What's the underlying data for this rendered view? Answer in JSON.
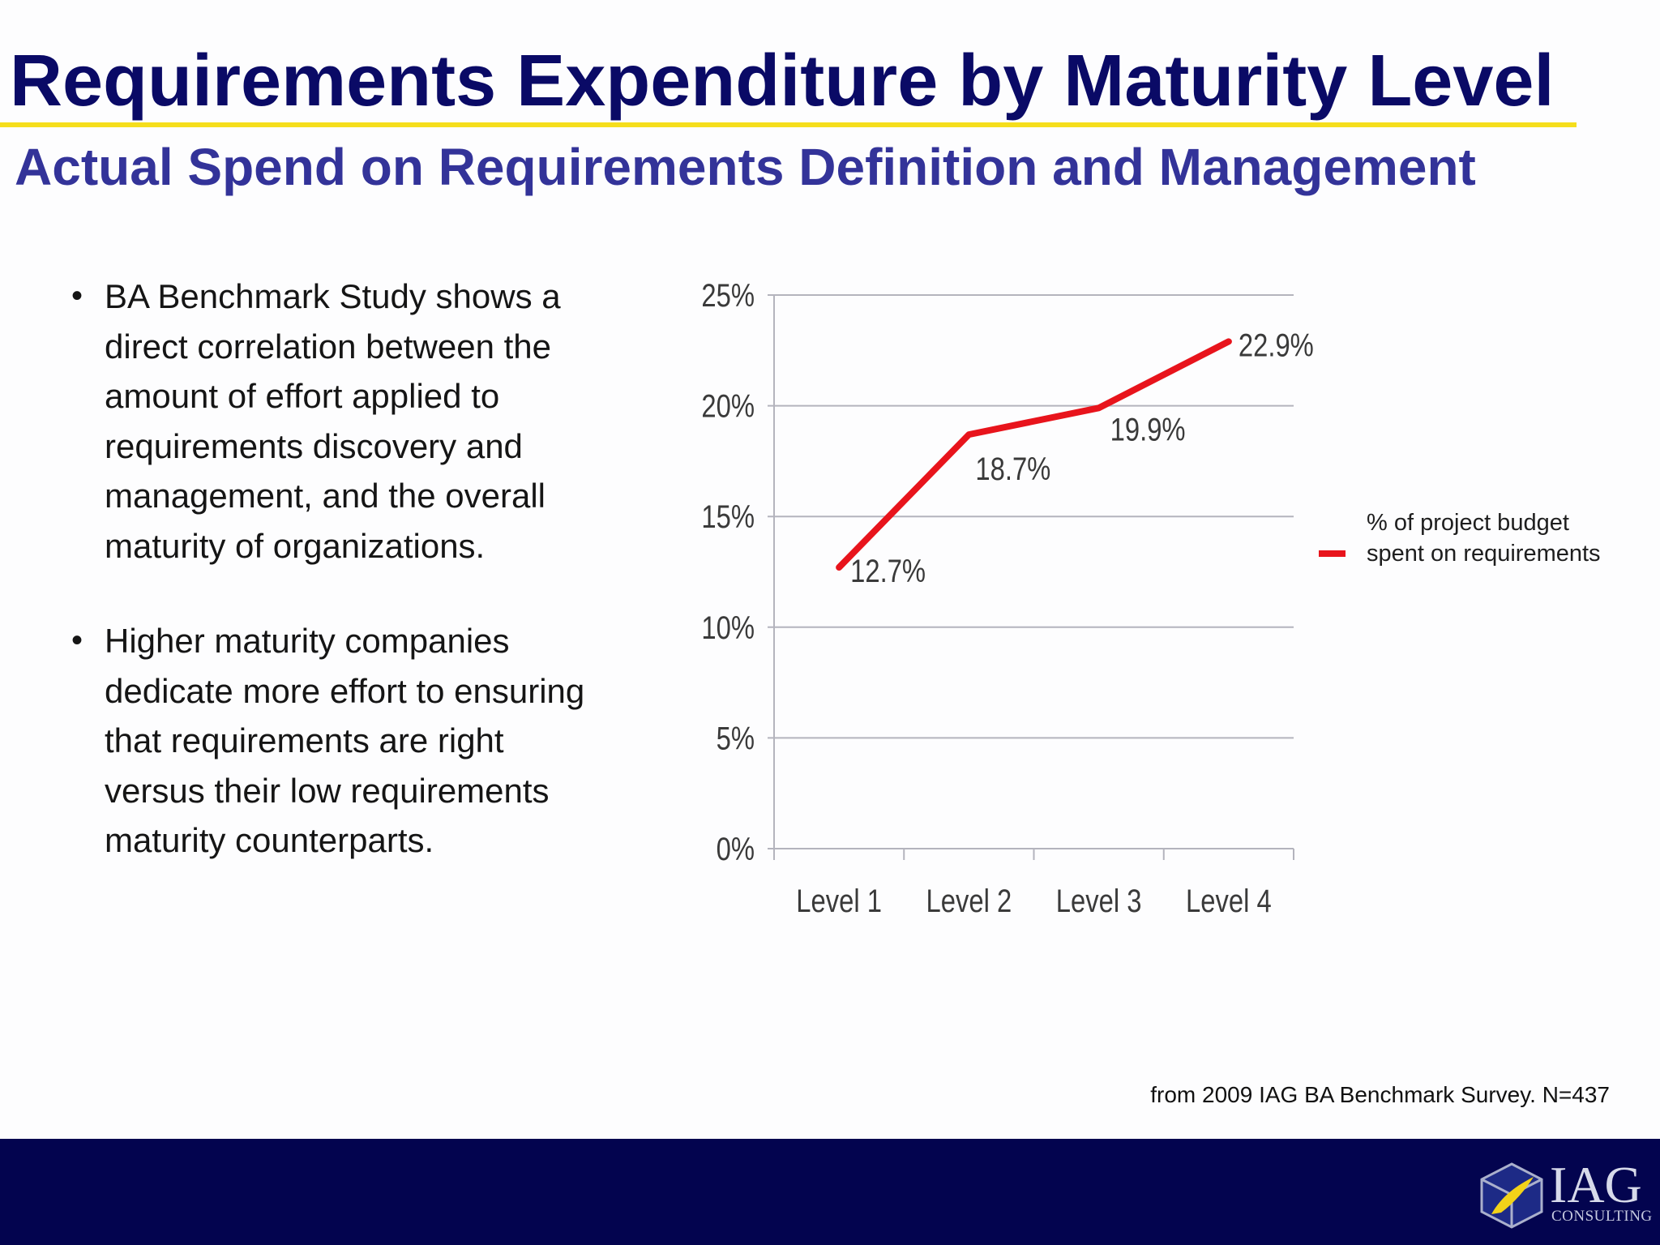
{
  "slide": {
    "title": "Requirements Expenditure by Maturity Level",
    "subtitle": "Actual Spend on Requirements Definition and Management",
    "bullet_marker": "•",
    "bullets": [
      "BA Benchmark Study shows a direct correlation between the amount of effort applied to requirements discovery and management, and the overall maturity of organizations.",
      "Higher maturity companies dedicate more effort to ensuring that requirements are right versus their low requirements maturity counterparts."
    ],
    "source": "from 2009 IAG BA Benchmark Survey. N=437",
    "logo": {
      "name": "IAG",
      "tagline": "CONSULTING"
    }
  },
  "colors": {
    "title": "#0a0a66",
    "title_rule": "#f5de1c",
    "subtitle": "#333399",
    "series_line": "#e8141c",
    "footer": "#03044f"
  },
  "chart_data": {
    "type": "line",
    "title": "",
    "xlabel": "",
    "ylabel": "",
    "categories": [
      "Level 1",
      "Level 2",
      "Level 3",
      "Level 4"
    ],
    "series": [
      {
        "name": "% of project budget spent on requirements",
        "values": [
          12.7,
          18.7,
          19.9,
          22.9
        ],
        "data_labels": [
          "12.7%",
          "18.7%",
          "19.9%",
          "22.9%"
        ]
      }
    ],
    "ylim": [
      0,
      25
    ],
    "y_ticks": [
      0,
      5,
      10,
      15,
      20,
      25
    ],
    "y_tick_labels": [
      "0%",
      "5%",
      "10%",
      "15%",
      "20%",
      "25%"
    ],
    "grid": true,
    "legend_position": "right"
  }
}
